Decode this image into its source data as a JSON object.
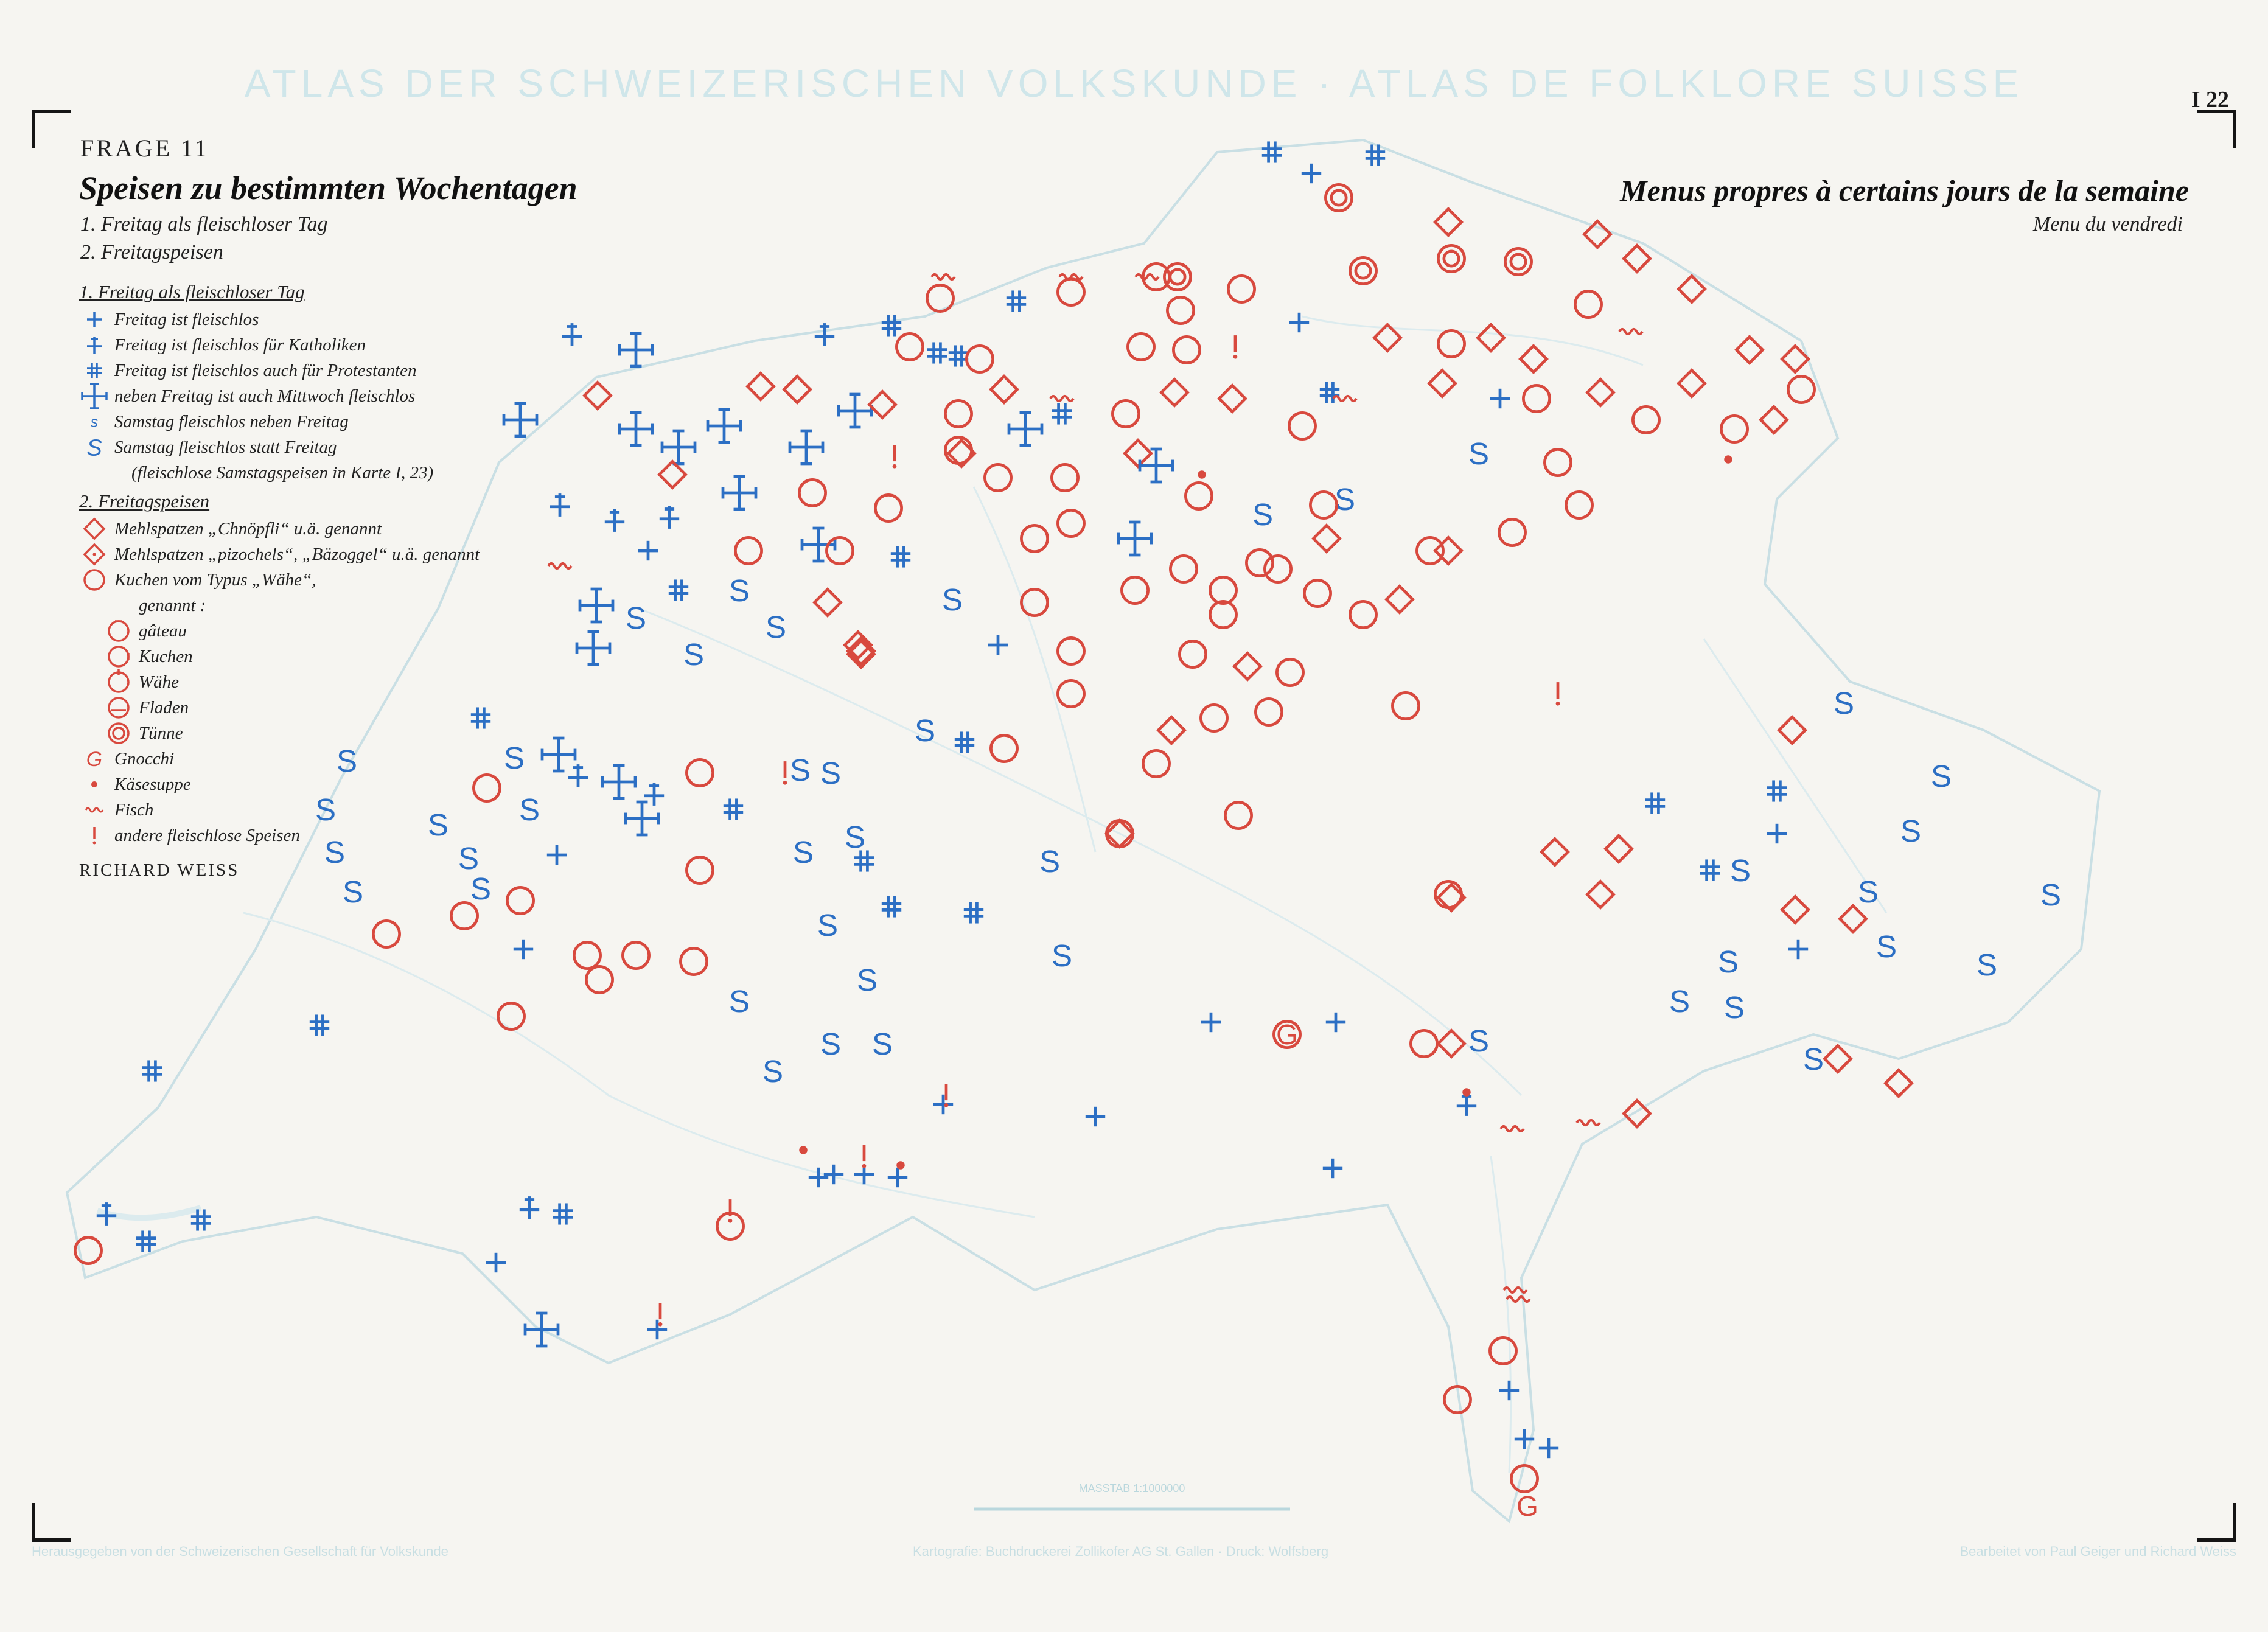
{
  "header": {
    "atlas_title": "ATLAS DER SCHWEIZERISCHEN VOLKSKUNDE · ATLAS DE FOLKLORE SUISSE",
    "sheet_number": "I 22",
    "question": "FRAGE 11",
    "title_de": "Speisen zu bestimmten Wochentagen",
    "subtitle_1": "1. Freitag als fleischloser Tag",
    "subtitle_2": "2. Freitagspeisen",
    "title_fr": "Menus propres à certains jours de la semaine",
    "subtitle_fr": "Menu du vendredi"
  },
  "legend": {
    "section1_heading": "1. Freitag als fleischloser Tag",
    "section1_items": [
      {
        "symbol": "plus-icon",
        "label": "Freitag ist fleischlos"
      },
      {
        "symbol": "plus-bar-icon",
        "label": "Freitag ist fleischlos für Katholiken"
      },
      {
        "symbol": "hash-cross-icon",
        "label": "Freitag ist fleischlos auch für Protestanten"
      },
      {
        "symbol": "cross-ticks-icon",
        "label": "neben Freitag ist auch Mittwoch fleischlos"
      },
      {
        "symbol": "small-s-icon",
        "label": "Samstag fleischlos neben Freitag"
      },
      {
        "symbol": "large-s-icon",
        "label": "Samstag fleischlos statt Freitag"
      }
    ],
    "section1_note": "(fleischlose Samstagspeisen in Karte I, 23)",
    "section2_heading": "2. Freitagspeisen",
    "section2_items": [
      {
        "symbol": "diamond-icon",
        "label": "Mehlspatzen „Chnöpfli“ u.ä. genannt"
      },
      {
        "symbol": "dotted-diamond-icon",
        "label": "Mehlspatzen „pizochels“, „Bäzoggel“ u.ä. genannt"
      },
      {
        "symbol": "circle-icon",
        "label": "Kuchen vom Typus „Wähe“,"
      },
      {
        "symbol": "",
        "label": "genannt :"
      }
    ],
    "cake_types": [
      {
        "symbol": "circle-gateau-icon",
        "label": "gâteau"
      },
      {
        "symbol": "circle-kuchen-icon",
        "label": "Kuchen"
      },
      {
        "symbol": "circle-wahe-icon",
        "label": "Wähe"
      },
      {
        "symbol": "circle-fladen-icon",
        "label": "Fladen"
      },
      {
        "symbol": "double-circle-icon",
        "label": "Tünne"
      }
    ],
    "other_items": [
      {
        "symbol": "g-icon",
        "label": "Gnocchi"
      },
      {
        "symbol": "dot-icon",
        "label": "Käsesuppe"
      },
      {
        "symbol": "wave-icon",
        "label": "Fisch"
      },
      {
        "symbol": "exclamation-icon",
        "label": "andere fleischlose Speisen"
      }
    ],
    "author": "RICHARD WEISS"
  },
  "footer": {
    "left": "Herausgegeben von der Schweizerischen Gesellschaft für Volkskunde",
    "center": "Kartografie: Buchdruckerei Zollikofer AG St. Gallen · Druck: Wolfsberg",
    "right": "Bearbeitet von Paul Geiger und Richard Weiss"
  },
  "scale_label": "MASSTAB 1:1000000",
  "colors": {
    "blue": "#2c6fc4",
    "red": "#d8493e",
    "paper": "#f6f5f1",
    "banner": "#cfe6ea"
  }
}
